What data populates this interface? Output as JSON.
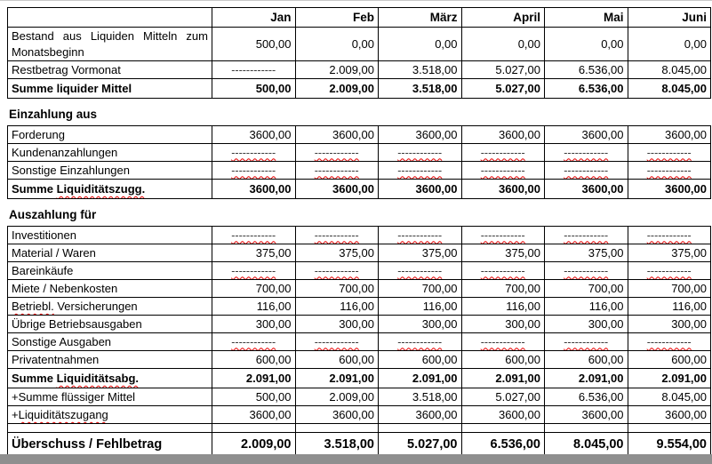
{
  "window": {
    "bottom_bar_color": "#8f8f8f"
  },
  "columns": [
    "Jan",
    "Feb",
    "März",
    "April",
    "Mai",
    "Juni"
  ],
  "sections": [
    {
      "title": "",
      "rows": [
        {
          "style": "tall",
          "parts": [
            {
              "t": "Bestand aus Liquiden Mitteln zum Monatsbeginn"
            }
          ],
          "values": [
            "500,00",
            "0,00",
            "0,00",
            "0,00",
            "0,00",
            "0,00"
          ]
        },
        {
          "dash_plain": true,
          "parts": [
            {
              "t": "Restbetrag Vormonat"
            }
          ],
          "values": [
            "------------",
            "2.009,00",
            "3.518,00",
            "5.027,00",
            "6.536,00",
            "8.045,00"
          ]
        },
        {
          "style": "bold summe",
          "parts": [
            {
              "t": "Summe liquider Mittel"
            }
          ],
          "values": [
            "500,00",
            "2.009,00",
            "3.518,00",
            "5.027,00",
            "6.536,00",
            "8.045,00"
          ]
        }
      ]
    },
    {
      "title": "Einzahlung aus",
      "rows": [
        {
          "parts": [
            {
              "t": "Forderung"
            }
          ],
          "values": [
            "3600,00",
            "3600,00",
            "3600,00",
            "3600,00",
            "3600,00",
            "3600,00"
          ]
        },
        {
          "parts": [
            {
              "t": "Kundenanzahlungen"
            }
          ],
          "values": [
            "------------",
            "------------",
            "------------",
            "------------",
            "------------",
            "------------"
          ]
        },
        {
          "parts": [
            {
              "t": "Sonstige Einzahlungen"
            }
          ],
          "values": [
            "------------",
            "------------",
            "------------",
            "------------",
            "------------",
            "------------"
          ]
        },
        {
          "style": "bold summe",
          "parts": [
            {
              "t": "Summe "
            },
            {
              "t": "Liquiditätszugg.",
              "sp": true
            }
          ],
          "values": [
            "3600,00",
            "3600,00",
            "3600,00",
            "3600,00",
            "3600,00",
            "3600,00"
          ]
        }
      ]
    },
    {
      "title": "Auszahlung für",
      "rows": [
        {
          "parts": [
            {
              "t": "Investitionen"
            }
          ],
          "values": [
            "------------",
            "------------",
            "------------",
            "------------",
            "------------",
            "------------"
          ]
        },
        {
          "parts": [
            {
              "t": "Material / Waren"
            }
          ],
          "values": [
            "375,00",
            "375,00",
            "375,00",
            "375,00",
            "375,00",
            "375,00"
          ]
        },
        {
          "parts": [
            {
              "t": "Bareinkäufe"
            }
          ],
          "values": [
            "------------",
            "------------",
            "------------",
            "------------",
            "------------",
            "------------"
          ]
        },
        {
          "parts": [
            {
              "t": "Miete / Nebenkosten"
            }
          ],
          "values": [
            "700,00",
            "700,00",
            "700,00",
            "700,00",
            "700,00",
            "700,00"
          ]
        },
        {
          "parts": [
            {
              "t": "Betriebl.",
              "sp": true
            },
            {
              "t": " Versicherungen"
            }
          ],
          "values": [
            "116,00",
            "116,00",
            "116,00",
            "116,00",
            "116,00",
            "116,00"
          ]
        },
        {
          "parts": [
            {
              "t": "Übrige Betriebsausgaben"
            }
          ],
          "values": [
            "300,00",
            "300,00",
            "300,00",
            "300,00",
            "300,00",
            "300,00"
          ]
        },
        {
          "parts": [
            {
              "t": "Sonstige Ausgaben"
            }
          ],
          "values": [
            "------------",
            "------------",
            "------------",
            "------------",
            "------------",
            "------------"
          ]
        },
        {
          "parts": [
            {
              "t": "Privatentnahmen"
            }
          ],
          "values": [
            "600,00",
            "600,00",
            "600,00",
            "600,00",
            "600,00",
            "600,00"
          ]
        },
        {
          "style": "bold summe",
          "parts": [
            {
              "t": "Summe "
            },
            {
              "t": "Liquiditätsabg.",
              "sp": true
            }
          ],
          "values": [
            "2.091,00",
            "2.091,00",
            "2.091,00",
            "2.091,00",
            "2.091,00",
            "2.091,00"
          ]
        },
        {
          "parts": [
            {
              "t": "+Summe flüssiger Mittel"
            }
          ],
          "values": [
            "500,00",
            "2.009,00",
            "3.518,00",
            "5.027,00",
            "6.536,00",
            "8.045,00"
          ]
        },
        {
          "parts": [
            {
              "t": "+"
            },
            {
              "t": "Liquiditätszugang",
              "sp": true
            }
          ],
          "values": [
            "3600,00",
            "3600,00",
            "3600,00",
            "3600,00",
            "3600,00",
            "3600,00"
          ]
        },
        {
          "style": "spacer",
          "parts": [
            {
              "t": ""
            }
          ],
          "values": [
            "",
            "",
            "",
            "",
            "",
            ""
          ]
        },
        {
          "style": "bold final",
          "parts": [
            {
              "t": "Überschuss / Fehlbetrag"
            }
          ],
          "values": [
            "2.009,00",
            "3.518,00",
            "5.027,00",
            "6.536,00",
            "8.045,00",
            "9.554,00"
          ]
        }
      ]
    }
  ]
}
